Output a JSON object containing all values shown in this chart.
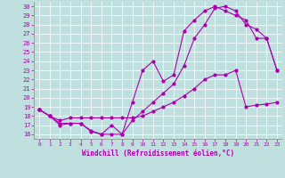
{
  "xlabel": "Windchill (Refroidissement éolien,°C)",
  "background_color": "#c0e0e0",
  "line_color": "#aa00aa",
  "xlim": [
    -0.5,
    23.5
  ],
  "ylim": [
    15.5,
    30.5
  ],
  "xticks": [
    0,
    1,
    2,
    3,
    4,
    5,
    6,
    7,
    8,
    9,
    10,
    11,
    12,
    13,
    14,
    15,
    16,
    17,
    18,
    19,
    20,
    21,
    22,
    23
  ],
  "yticks": [
    16,
    17,
    18,
    19,
    20,
    21,
    22,
    23,
    24,
    25,
    26,
    27,
    28,
    29,
    30
  ],
  "line1_x": [
    0,
    1,
    2,
    3,
    4,
    5,
    6,
    7,
    8,
    9,
    10,
    11,
    12,
    13,
    14,
    15,
    16,
    17,
    18,
    19,
    20,
    21,
    22,
    23
  ],
  "line1_y": [
    18.7,
    18.0,
    17.0,
    17.2,
    17.2,
    16.3,
    16.0,
    17.0,
    16.0,
    19.5,
    23.0,
    24.0,
    21.8,
    22.5,
    27.3,
    28.5,
    29.5,
    30.0,
    29.5,
    29.0,
    28.5,
    26.5,
    26.5,
    23.0
  ],
  "line2_x": [
    0,
    1,
    2,
    3,
    4,
    5,
    6,
    7,
    8,
    9,
    10,
    11,
    12,
    13,
    14,
    15,
    16,
    17,
    18,
    19,
    20,
    21,
    22,
    23
  ],
  "line2_y": [
    18.7,
    18.0,
    17.2,
    17.2,
    17.2,
    16.4,
    16.0,
    16.0,
    16.0,
    17.5,
    18.5,
    19.5,
    20.5,
    21.5,
    23.5,
    26.5,
    28.0,
    29.8,
    30.0,
    29.5,
    28.0,
    27.5,
    26.5,
    23.0
  ],
  "line3_x": [
    0,
    1,
    2,
    3,
    4,
    5,
    6,
    7,
    8,
    9,
    10,
    11,
    12,
    13,
    14,
    15,
    16,
    17,
    18,
    19,
    20,
    21,
    22,
    23
  ],
  "line3_y": [
    18.7,
    18.0,
    17.5,
    17.8,
    17.8,
    17.8,
    17.8,
    17.8,
    17.8,
    17.8,
    18.0,
    18.5,
    19.0,
    19.5,
    20.2,
    21.0,
    22.0,
    22.5,
    22.5,
    23.0,
    19.0,
    19.2,
    19.3,
    19.5
  ]
}
